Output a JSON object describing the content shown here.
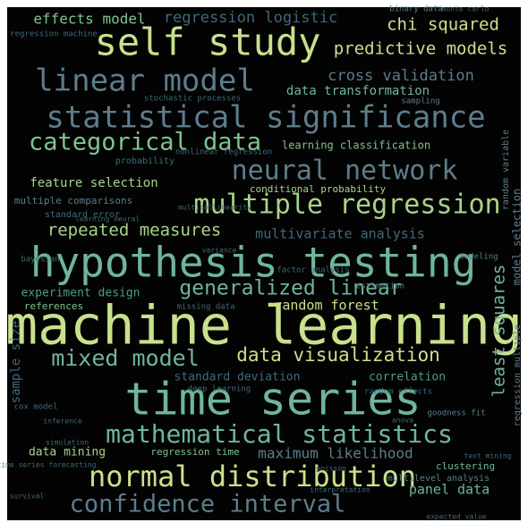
{
  "words": [
    "machine learning",
    "time series",
    "hypothesis testing",
    "self study",
    "statistical significance",
    "linear model",
    "multiple regression",
    "neural network",
    "normal distribution",
    "mathematical statistics",
    "confidence interval",
    "categorical data",
    "generalized linear",
    "mixed model",
    "data visualization",
    "repeated measures",
    "predictive models",
    "chi squared",
    "regression logistic",
    "effects model",
    "cross validation",
    "data transformation",
    "feature selection",
    "multivariate analysis",
    "experiment design",
    "random forest",
    "standard deviation",
    "correlation",
    "data mining",
    "regression time",
    "maximum likelihood",
    "panel data",
    "least squares",
    "learning classification",
    "conditional probability",
    "probability",
    "multiple comparisons",
    "standard error",
    "references",
    "clustering",
    "multilevel analysis",
    "sample size",
    "model selection",
    "goodness fit",
    "deep learning",
    "factor analysis",
    "missing data",
    "random effects",
    "estimation",
    "bayesian",
    "variance",
    "nonlinear regression",
    "regression machine",
    "stochastic processes",
    "binary data",
    "sampling",
    "monte carlo",
    "learning neural",
    "modeling",
    "inference",
    "simulation",
    "survival",
    "poisson",
    "text mining",
    "anova",
    "expected value",
    "interpretation",
    "multicollinearity",
    "regression multiple",
    "random variable",
    "time series forecasting",
    "cox model"
  ]
}
